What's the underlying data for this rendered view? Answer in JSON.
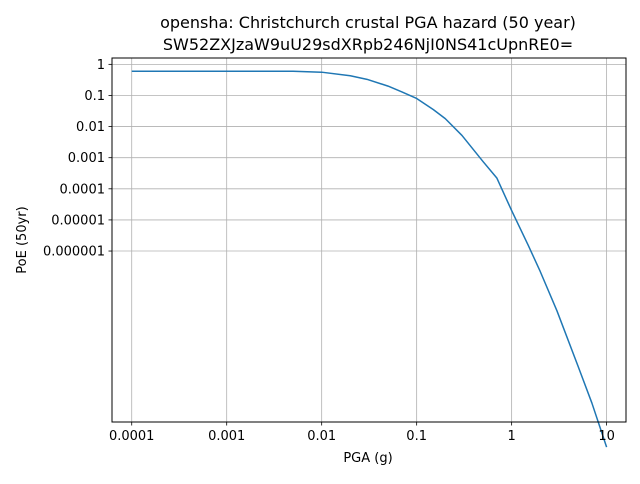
{
  "chart_data": {
    "type": "line",
    "title": "opensha: Christchurch crustal PGA hazard (50 year)",
    "subtitle": "SW52ZXJzaW9uU29sdXRpb246NjI0NS41cUpnRE0=",
    "xlabel": "PGA (g)",
    "ylabel": "PoE (50yr)",
    "xscale": "log",
    "yscale": "log",
    "xlim": [
      6.2e-05,
      16
    ],
    "ylim": [
      3.2e-12,
      1.6
    ],
    "grid": true,
    "x_ticks": [
      {
        "value": 0.0001,
        "label": "0.0001"
      },
      {
        "value": 0.001,
        "label": "0.001"
      },
      {
        "value": 0.01,
        "label": "0.01"
      },
      {
        "value": 0.1,
        "label": "0.1"
      },
      {
        "value": 1,
        "label": "1"
      },
      {
        "value": 10,
        "label": "10"
      }
    ],
    "y_ticks": [
      {
        "value": 1,
        "label": "1"
      },
      {
        "value": 0.1,
        "label": "0.1"
      },
      {
        "value": 0.01,
        "label": "0.01"
      },
      {
        "value": 0.001,
        "label": "0.001"
      },
      {
        "value": 0.0001,
        "label": "0.0001"
      },
      {
        "value": 1e-05,
        "label": "0.00001"
      },
      {
        "value": 1e-06,
        "label": "0.000001"
      }
    ],
    "series": [
      {
        "color": "#1f77b4",
        "x": [
          0.0001,
          0.001,
          0.003,
          0.005,
          0.01,
          0.02,
          0.03,
          0.05,
          0.07,
          0.1,
          0.15,
          0.2,
          0.3,
          0.5,
          0.7,
          1,
          1.5,
          2,
          3,
          5,
          7,
          10
        ],
        "y": [
          0.6,
          0.6,
          0.6,
          0.598,
          0.56,
          0.43,
          0.33,
          0.2,
          0.13,
          0.08,
          0.035,
          0.018,
          0.0052,
          0.00075,
          0.00022,
          2e-05,
          1.5e-06,
          2.2e-07,
          1.2e-08,
          2e-10,
          1.3e-11,
          5e-13
        ]
      }
    ]
  }
}
